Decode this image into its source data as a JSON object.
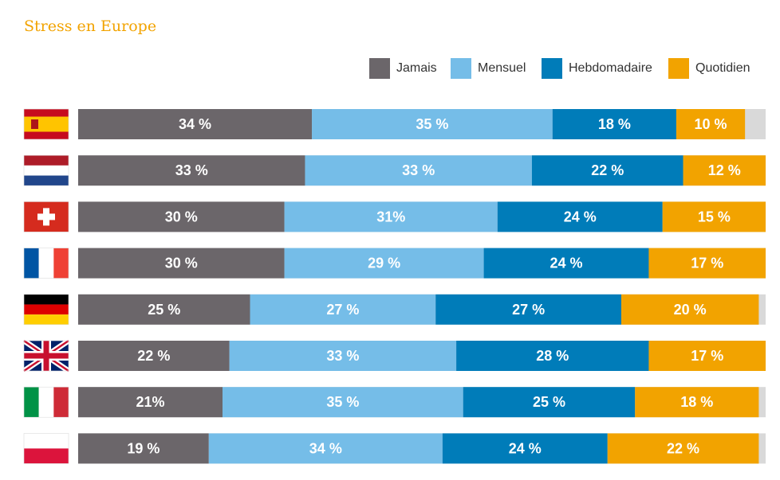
{
  "chart_data": {
    "type": "bar",
    "orientation": "horizontal",
    "stacked": true,
    "title": "Stress en Europe",
    "categories": [
      "Espagne",
      "Pays-Bas",
      "Suisse",
      "France",
      "Allemagne",
      "Royaume-Uni",
      "Italie",
      "Pologne"
    ],
    "flags": [
      "flag-spain",
      "flag-netherlands",
      "flag-switzerland",
      "flag-france",
      "flag-germany",
      "flag-uk",
      "flag-italy",
      "flag-poland"
    ],
    "series": [
      {
        "name": "Jamais",
        "color": "#6b666a",
        "values": [
          34,
          33,
          30,
          30,
          25,
          22,
          21,
          19
        ],
        "labels": [
          "34 %",
          "33 %",
          "30 %",
          "30 %",
          "25 %",
          "22 %",
          "21%",
          "19 %"
        ]
      },
      {
        "name": "Mensuel",
        "color": "#75bde8",
        "values": [
          35,
          33,
          31,
          29,
          27,
          33,
          35,
          34
        ],
        "labels": [
          "35 %",
          "33 %",
          "31%",
          "29 %",
          "27 %",
          "33 %",
          "35 %",
          "34 %"
        ]
      },
      {
        "name": "Hebdomadaire",
        "color": "#007cb9",
        "values": [
          18,
          22,
          24,
          24,
          27,
          28,
          25,
          24
        ],
        "labels": [
          "18 %",
          "22 %",
          "24 %",
          "24 %",
          "27 %",
          "28 %",
          "25 %",
          "24 %"
        ]
      },
      {
        "name": "Quotidien",
        "color": "#f2a300",
        "values": [
          10,
          12,
          15,
          17,
          20,
          17,
          18,
          22
        ],
        "labels": [
          "10 %",
          "12 %",
          "15 %",
          "17 %",
          "20 %",
          "17 %",
          "18 %",
          "22 %"
        ]
      }
    ],
    "remainder_color": "#d9d9d9",
    "legend_position": "top-right",
    "xlim": [
      0,
      100
    ],
    "grid": false
  }
}
